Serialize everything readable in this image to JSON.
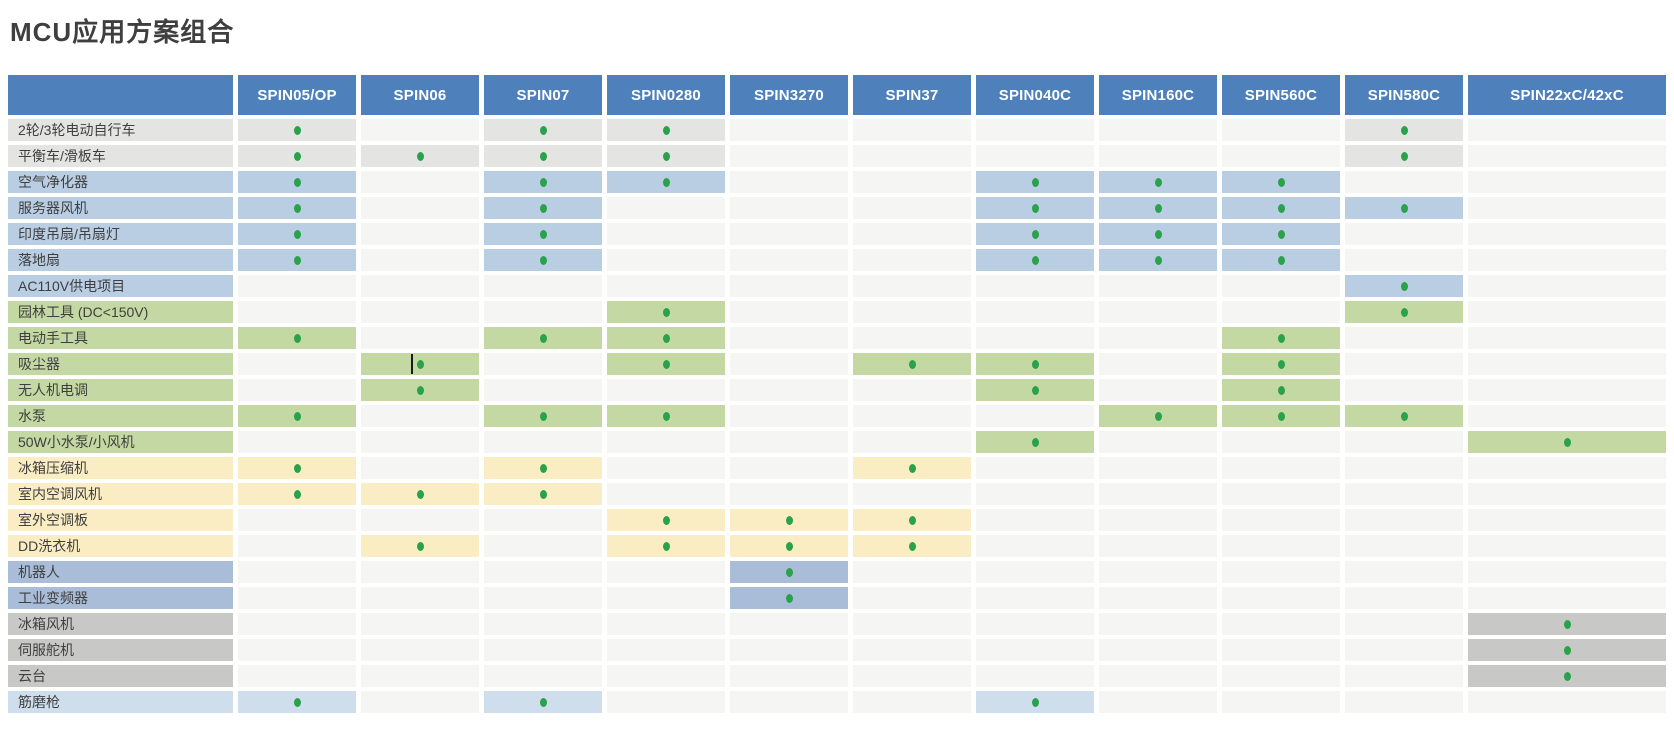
{
  "page": {
    "title": "MCU应用方案组合"
  },
  "colors": {
    "header_bg": "#4e80bb",
    "header_text": "#ffffff",
    "plain_cell": "#f5f5f3",
    "dot": "#2aa24b",
    "bands": {
      "gray": "#e4e4e2",
      "blue": "#b9cde3",
      "green": "#c3d8a2",
      "yellow": "#fbedc3",
      "periwinkle": "#a9bdd9",
      "darkgray": "#c8c8c6",
      "paleblue": "#cfdeed"
    }
  },
  "table": {
    "corner_label": "",
    "columns": [
      "SPIN05/OP",
      "SPIN06",
      "SPIN07",
      "SPIN0280",
      "SPIN3270",
      "SPIN37",
      "SPIN040C",
      "SPIN160C",
      "SPIN560C",
      "SPIN580C",
      "SPIN22xC/42xC"
    ],
    "rows": [
      {
        "label": "2轮/3轮电动自行车",
        "band": "gray",
        "dots": [
          1,
          0,
          1,
          1,
          0,
          0,
          0,
          0,
          0,
          1,
          0
        ]
      },
      {
        "label": "平衡车/滑板车",
        "band": "gray",
        "dots": [
          1,
          1,
          1,
          1,
          0,
          0,
          0,
          0,
          0,
          1,
          0
        ]
      },
      {
        "label": "空气净化器",
        "band": "blue",
        "dots": [
          1,
          0,
          1,
          1,
          0,
          0,
          1,
          1,
          1,
          0,
          0
        ]
      },
      {
        "label": "服务器风机",
        "band": "blue",
        "dots": [
          1,
          0,
          1,
          0,
          0,
          0,
          1,
          1,
          1,
          1,
          0
        ]
      },
      {
        "label": "印度吊扇/吊扇灯",
        "band": "blue",
        "dots": [
          1,
          0,
          1,
          0,
          0,
          0,
          1,
          1,
          1,
          0,
          0
        ]
      },
      {
        "label": "落地扇",
        "band": "blue",
        "dots": [
          1,
          0,
          1,
          0,
          0,
          0,
          1,
          1,
          1,
          0,
          0
        ]
      },
      {
        "label": "AC110V供电项目",
        "band": "blue",
        "dots": [
          0,
          0,
          0,
          0,
          0,
          0,
          0,
          0,
          0,
          1,
          0
        ]
      },
      {
        "label": "园林工具 (DC<150V)",
        "band": "green",
        "dots": [
          0,
          0,
          0,
          1,
          0,
          0,
          0,
          0,
          0,
          1,
          0
        ]
      },
      {
        "label": "电动手工具",
        "band": "green",
        "dots": [
          1,
          0,
          1,
          1,
          0,
          0,
          0,
          0,
          1,
          0,
          0
        ]
      },
      {
        "label": "吸尘器",
        "band": "green",
        "dots": [
          0,
          1,
          0,
          1,
          0,
          1,
          1,
          0,
          1,
          0,
          0
        ]
      },
      {
        "label": "无人机电调",
        "band": "green",
        "dots": [
          0,
          1,
          0,
          0,
          0,
          0,
          1,
          0,
          1,
          0,
          0
        ]
      },
      {
        "label": "水泵",
        "band": "green",
        "dots": [
          1,
          0,
          1,
          1,
          0,
          0,
          0,
          1,
          1,
          1,
          0
        ]
      },
      {
        "label": "50W小水泵/小风机",
        "band": "green",
        "dots": [
          0,
          0,
          0,
          0,
          0,
          0,
          1,
          0,
          0,
          0,
          1
        ]
      },
      {
        "label": "冰箱压缩机",
        "band": "yellow",
        "dots": [
          1,
          0,
          1,
          0,
          0,
          1,
          0,
          0,
          0,
          0,
          0
        ]
      },
      {
        "label": "室内空调风机",
        "band": "yellow",
        "dots": [
          1,
          1,
          1,
          0,
          0,
          0,
          0,
          0,
          0,
          0,
          0
        ]
      },
      {
        "label": "室外空调板",
        "band": "yellow",
        "dots": [
          0,
          0,
          0,
          1,
          1,
          1,
          0,
          0,
          0,
          0,
          0
        ]
      },
      {
        "label": "DD洗衣机",
        "band": "yellow",
        "dots": [
          0,
          1,
          0,
          1,
          1,
          1,
          0,
          0,
          0,
          0,
          0
        ]
      },
      {
        "label": "机器人",
        "band": "periwinkle",
        "dots": [
          0,
          0,
          0,
          0,
          1,
          0,
          0,
          0,
          0,
          0,
          0
        ]
      },
      {
        "label": "工业变频器",
        "band": "periwinkle",
        "dots": [
          0,
          0,
          0,
          0,
          1,
          0,
          0,
          0,
          0,
          0,
          0
        ]
      },
      {
        "label": "冰箱风机",
        "band": "darkgray",
        "dots": [
          0,
          0,
          0,
          0,
          0,
          0,
          0,
          0,
          0,
          0,
          1
        ]
      },
      {
        "label": "伺服舵机",
        "band": "darkgray",
        "dots": [
          0,
          0,
          0,
          0,
          0,
          0,
          0,
          0,
          0,
          0,
          1
        ]
      },
      {
        "label": "云台",
        "band": "darkgray",
        "dots": [
          0,
          0,
          0,
          0,
          0,
          0,
          0,
          0,
          0,
          0,
          1
        ]
      },
      {
        "label": "筋磨枪",
        "band": "paleblue",
        "dots": [
          1,
          0,
          1,
          0,
          0,
          0,
          1,
          0,
          0,
          0,
          0
        ]
      }
    ],
    "cursor_artifact": {
      "row_index": 9,
      "col_index": 1
    }
  }
}
